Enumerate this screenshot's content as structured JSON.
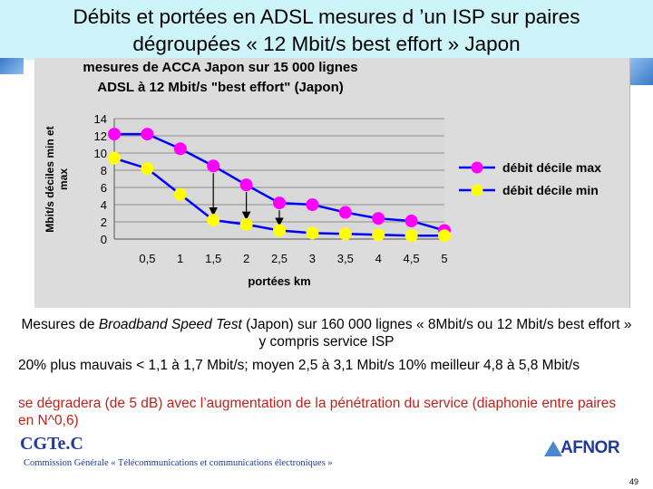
{
  "slide": {
    "title": "Débits et portées en ADSL mesures d ’un ISP sur paires dégroupées « 12 Mbit/s  best effort » Japon",
    "paragraph1_a": "Mesures de ",
    "paragraph1_italic": "Broadband  Speed Test",
    "paragraph1_b": " (Japon) sur 160 000 lignes « 8Mbit/s ou 12 Mbit/s best effort » y compris service ISP",
    "paragraph2": "20% plus mauvais < 1,1 à 1,7 Mbit/s; moyen 2,5 à 3,1 Mbit/s    10% meilleur 4,8 à 5,8 Mbit/s",
    "paragraph3": "se dégradera (de 5 dB) avec l’augmentation de la pénétration du service (diaphonie entre paires en N^0,6)",
    "org_name": "CGTe.C",
    "org_full": "Commission Générale « Télécommunications et communications électroniques »",
    "logo_text": "AFNOR",
    "page_number": "49"
  },
  "colors": {
    "title_band": "#cdf4f8",
    "series_max": "#ff00ff",
    "series_min": "#ffff00",
    "series_line": "#0000ff",
    "text_red": "#c0221b",
    "org_blue": "#1f3aa0"
  },
  "chart_data": {
    "type": "line",
    "title_line1": "mesures de ACCA Japon sur 15 000 lignes",
    "title_line2": "ADSL à 12 Mbit/s \"best effort\" (Japon)",
    "xlabel": "portées km",
    "ylabel_line1": "Mbit/s déciles min et",
    "ylabel_line2": "max",
    "x": [
      0,
      0.5,
      1,
      1.5,
      2,
      2.5,
      3,
      3.5,
      4,
      4.5,
      5
    ],
    "x_tick_labels": [
      "0,5",
      "1",
      "1,5",
      "2",
      "2,5",
      "3",
      "3,5",
      "4",
      "4,5",
      "5"
    ],
    "y_ticks": [
      0,
      2,
      4,
      6,
      8,
      10,
      12,
      14
    ],
    "ylim": [
      0,
      14
    ],
    "grid": true,
    "legend_position": "right",
    "series": [
      {
        "name": "débit décile max",
        "values": [
          12.2,
          12.2,
          10.5,
          8.5,
          6.3,
          4.2,
          4.0,
          3.1,
          2.4,
          2.1,
          1.0
        ]
      },
      {
        "name": "débit décile min",
        "values": [
          9.4,
          8.2,
          5.2,
          2.2,
          1.7,
          1.0,
          0.7,
          0.6,
          0.5,
          0.4,
          0.4
        ]
      }
    ],
    "arrows_at_x": [
      1.5,
      2,
      2.5
    ]
  }
}
